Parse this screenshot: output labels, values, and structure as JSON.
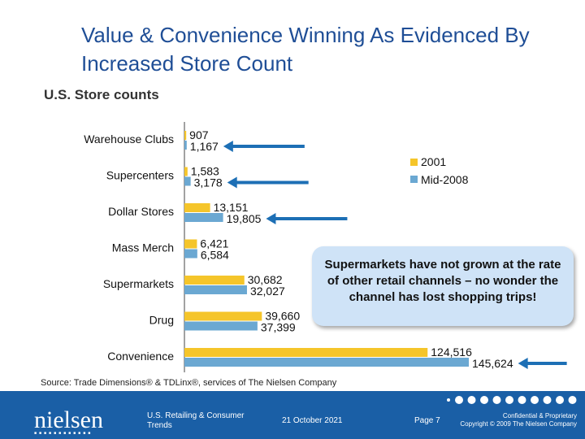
{
  "title": "Value & Convenience Winning As Evidenced By Increased Store Count",
  "subtitle": "U.S. Store counts",
  "callout": "Supermarkets have not grown at the rate of other retail channels – no wonder the channel has lost shopping trips!",
  "source": "Source: Trade Dimensions® & TDLinx®, services of The Nielsen Company",
  "footer": {
    "logo": "nielsen",
    "report": "U.S. Retailing & Consumer Trends",
    "date": "21 October 2021",
    "page": "Page 7",
    "confidential": "Confidential & Proprietary",
    "copyright": "Copyright © 2009 The Nielsen Company"
  },
  "colors": {
    "2001": "#f5c52a",
    "mid2008": "#6ba8d2",
    "arrow": "#1d6fb5",
    "footer": "#1a5fa6"
  },
  "chart_data": {
    "type": "bar",
    "orientation": "horizontal",
    "categories": [
      "Warehouse Clubs",
      "Supercenters",
      "Dollar Stores",
      "Mass Merch",
      "Supermarkets",
      "Drug",
      "Convenience"
    ],
    "series": [
      {
        "name": "2001",
        "values": [
          907,
          1583,
          13151,
          6421,
          30682,
          39660,
          124516
        ]
      },
      {
        "name": "Mid-2008",
        "values": [
          1167,
          3178,
          19805,
          6584,
          32027,
          37399,
          145624
        ]
      }
    ],
    "value_labels": {
      "2001": [
        "907",
        "1,583",
        "13,151",
        "6,421",
        "30,682",
        "39,660",
        "124,516"
      ],
      "Mid-2008": [
        "1,167",
        "3,178",
        "19,805",
        "6,584",
        "32,027",
        "37,399",
        "145,624"
      ]
    },
    "arrows_on": [
      "Warehouse Clubs",
      "Supercenters",
      "Dollar Stores",
      "Convenience"
    ],
    "legend_position": "top-right",
    "grid": false
  }
}
